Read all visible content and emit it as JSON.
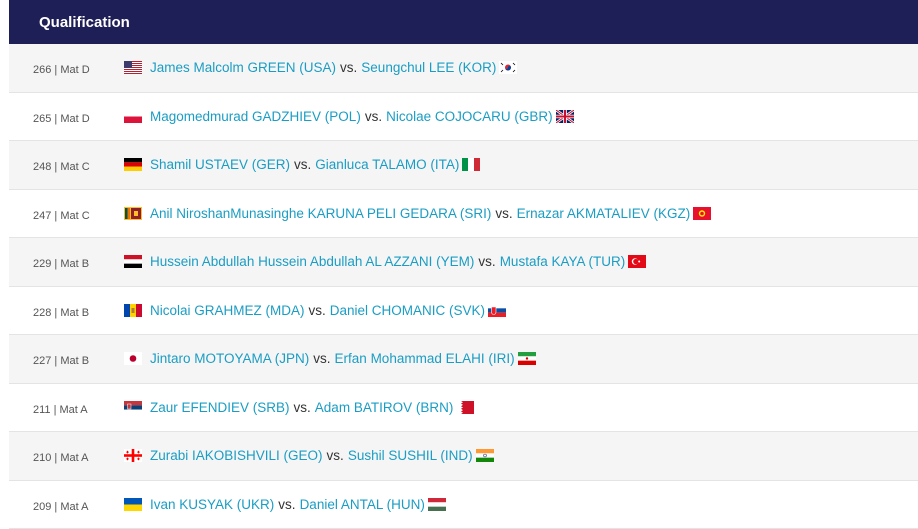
{
  "section": {
    "title": "Qualification"
  },
  "bouts": [
    {
      "meta": "266 | Mat D",
      "a": "James Malcolm GREEN (USA)",
      "vs": "vs.",
      "b": "Seungchul LEE (KOR)",
      "flag_a": "usa-flag-icon",
      "flag_b": "kor-flag-icon"
    },
    {
      "meta": "265 | Mat D",
      "a": "Magomedmurad GADZHIEV (POL)",
      "vs": "vs.",
      "b": "Nicolae COJOCARU (GBR)",
      "flag_a": "pol-flag-icon",
      "flag_b": "gbr-flag-icon"
    },
    {
      "meta": "248 | Mat C",
      "a": "Shamil USTAEV (GER)",
      "vs": "vs.",
      "b": "Gianluca TALAMO (ITA)",
      "flag_a": "ger-flag-icon",
      "flag_b": "ita-flag-icon"
    },
    {
      "meta": "247 | Mat C",
      "a": "Anil NiroshanMunasinghe KARUNA PELI GEDARA (SRI)",
      "vs": "vs.",
      "b": "Ernazar AKMATALIEV (KGZ)",
      "flag_a": "sri-flag-icon",
      "flag_b": "kgz-flag-icon"
    },
    {
      "meta": "229 | Mat B",
      "a": "Hussein Abdullah Hussein Abdullah AL AZZANI (YEM)",
      "vs": "vs.",
      "b": "Mustafa KAYA (TUR)",
      "flag_a": "yem-flag-icon",
      "flag_b": "tur-flag-icon"
    },
    {
      "meta": "228 | Mat B",
      "a": "Nicolai GRAHMEZ (MDA)",
      "vs": "vs.",
      "b": "Daniel CHOMANIC (SVK)",
      "flag_a": "mda-flag-icon",
      "flag_b": "svk-flag-icon"
    },
    {
      "meta": "227 | Mat B",
      "a": "Jintaro MOTOYAMA (JPN)",
      "vs": "vs.",
      "b": "Erfan Mohammad ELAHI (IRI)",
      "flag_a": "jpn-flag-icon",
      "flag_b": "iri-flag-icon"
    },
    {
      "meta": "211 | Mat A",
      "a": "Zaur EFENDIEV (SRB)",
      "vs": "vs.",
      "b": "Adam BATIROV (BRN)",
      "flag_a": "srb-flag-icon",
      "flag_b": "brn-flag-icon"
    },
    {
      "meta": "210 | Mat A",
      "a": "Zurabi IAKOBISHVILI (GEO)",
      "vs": "vs.",
      "b": "Sushil SUSHIL (IND)",
      "flag_a": "geo-flag-icon",
      "flag_b": "ind-flag-icon"
    },
    {
      "meta": "209 | Mat A",
      "a": "Ivan KUSYAK (UKR)",
      "vs": "vs.",
      "b": "Daniel ANTAL (HUN)",
      "flag_a": "ukr-flag-icon",
      "flag_b": "hun-flag-icon"
    }
  ]
}
